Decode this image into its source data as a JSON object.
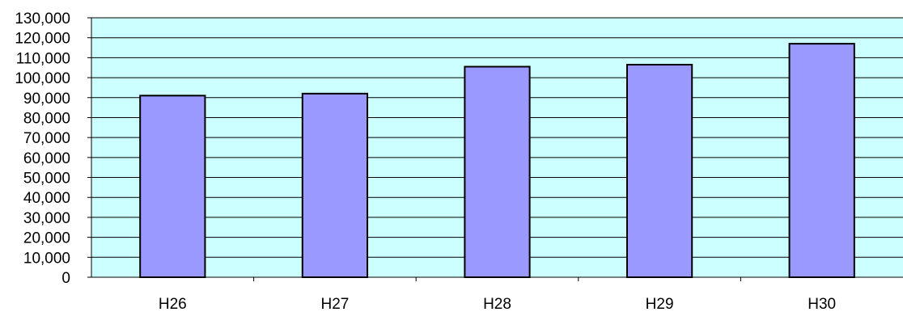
{
  "chart_data": {
    "type": "bar",
    "categories": [
      "H26",
      "H27",
      "H28",
      "H29",
      "H30"
    ],
    "values": [
      91000,
      92000,
      105500,
      106500,
      117000
    ],
    "ylim": [
      0,
      130000
    ],
    "ytick_step": 10000,
    "ytick_labels": [
      "0",
      "10,000",
      "20,000",
      "30,000",
      "40,000",
      "50,000",
      "60,000",
      "70,000",
      "80,000",
      "90,000",
      "100,000",
      "110,000",
      "120,000",
      "130,000"
    ],
    "title": "",
    "xlabel": "",
    "ylabel": "",
    "grid": "horizontal",
    "legend": "none",
    "colors": {
      "plot_background": "#ccffff",
      "bar_fill": "#9999ff",
      "bar_edge": "#000000",
      "grid": "#000000"
    }
  }
}
